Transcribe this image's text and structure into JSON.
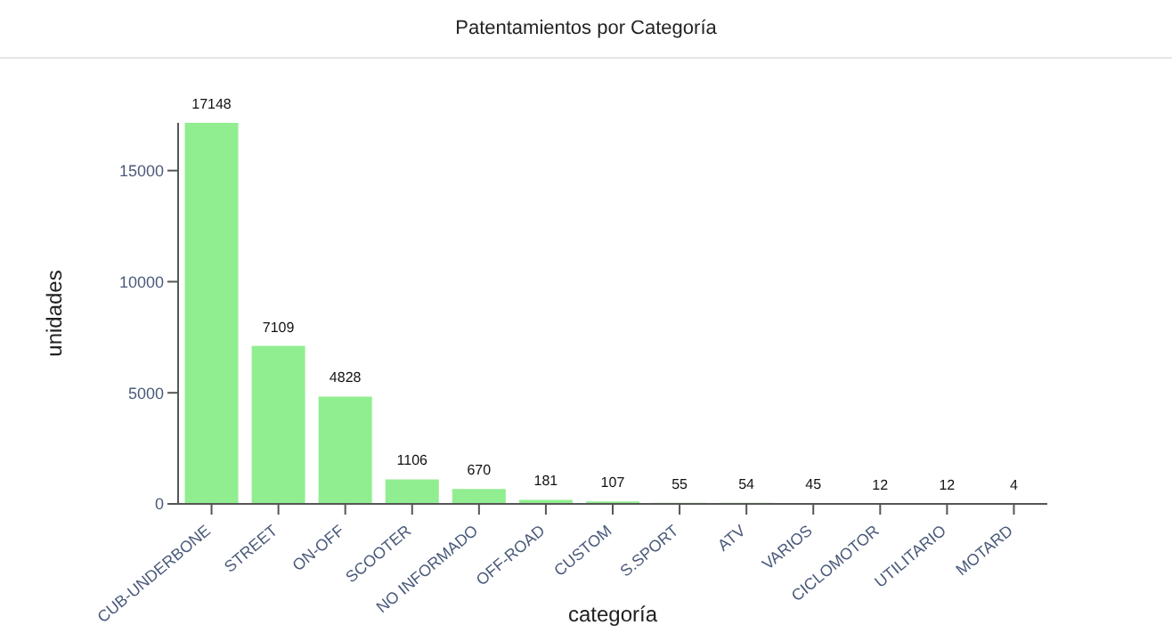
{
  "chart_data": {
    "type": "bar",
    "title": "Patentamientos por Categoría",
    "xlabel": "categoría",
    "ylabel": "unidades",
    "categories": [
      "CUB-UNDERBONE",
      "STREET",
      "ON-OFF",
      "SCOOTER",
      "NO INFORMADO",
      "OFF-ROAD",
      "CUSTOM",
      "S.SPORT",
      "ATV",
      "VARIOS",
      "CICLOMOTOR",
      "UTILITARIO",
      "MOTARD"
    ],
    "values": [
      17148,
      7109,
      4828,
      1106,
      670,
      181,
      107,
      55,
      54,
      45,
      12,
      12,
      4
    ],
    "color": "#90ee90",
    "ylim": [
      0,
      17148
    ],
    "yticks": [
      0,
      5000,
      10000,
      15000
    ],
    "grid": false,
    "data_labels": true,
    "legend": false
  }
}
